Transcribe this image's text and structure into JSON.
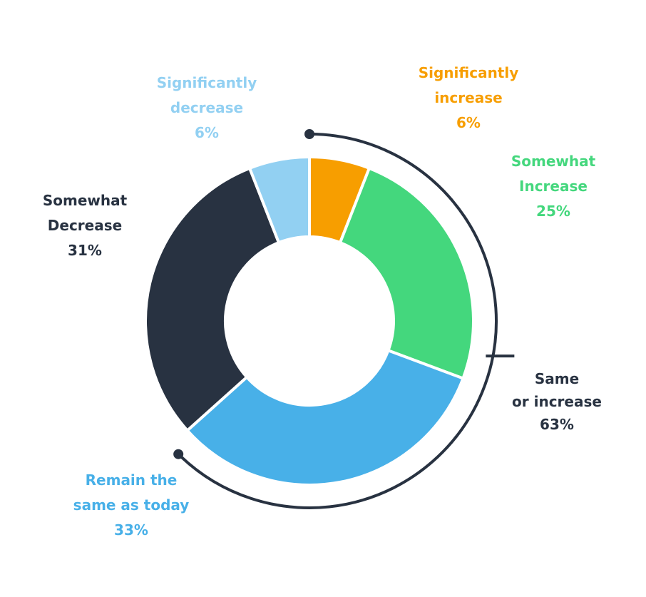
{
  "chart_data": {
    "type": "donut",
    "categories": [
      "Significantly\nincrease",
      "Somewhat\nIncrease",
      "Remain the\nsame as today",
      "Somewhat\nDecrease",
      "Significantly\ndecrease"
    ],
    "values": [
      6,
      25,
      33,
      31,
      6
    ],
    "value_labels": [
      "6%",
      "25%",
      "33%",
      "31%",
      "6%"
    ],
    "colors": [
      "#f79e00",
      "#44d77d",
      "#48b0e8",
      "#283241",
      "#92d0f2"
    ],
    "annotation": {
      "label": "Same\nor increase",
      "value": 63,
      "value_label": "63%",
      "color": "#283241"
    }
  }
}
